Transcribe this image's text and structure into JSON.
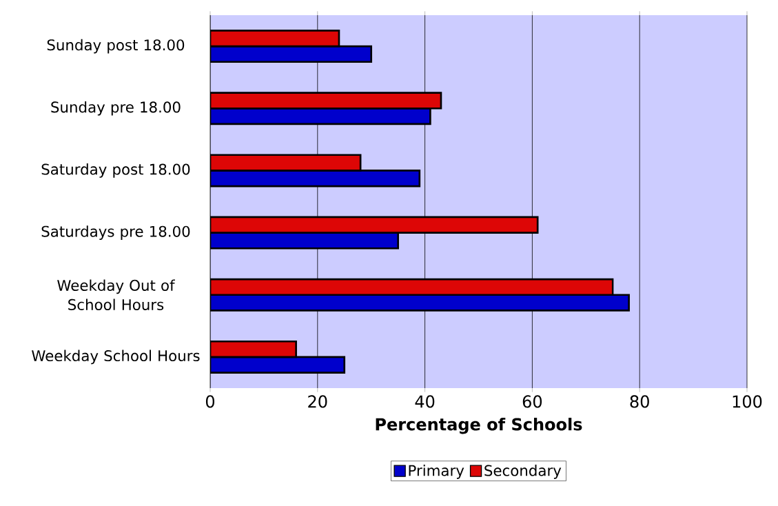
{
  "chart_data": {
    "type": "bar",
    "orientation": "horizontal",
    "xlabel": "Percentage of Schools",
    "categories": [
      "Sunday post 18.00",
      "Sunday pre 18.00",
      "Saturday post 18.00",
      "Saturdays pre 18.00",
      "Weekday Out of School Hours",
      "Weekday School Hours"
    ],
    "series": [
      {
        "name": "Primary",
        "color": "#0000cc",
        "values": [
          30,
          41,
          39,
          35,
          78,
          25
        ]
      },
      {
        "name": "Secondary",
        "color": "#dd0606",
        "values": [
          24,
          43,
          28,
          61,
          75,
          16
        ]
      }
    ],
    "xlim": [
      0,
      100
    ],
    "xticks": [
      0,
      20,
      40,
      60,
      80,
      100
    ],
    "grid": "x",
    "legend": "bottom"
  }
}
